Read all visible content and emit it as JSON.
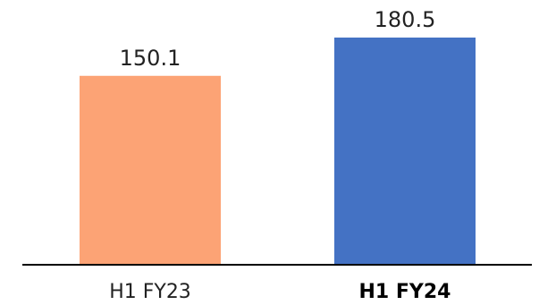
{
  "chart_data": {
    "type": "bar",
    "categories": [
      "H1 FY23",
      "H1 FY24"
    ],
    "values": [
      150.1,
      180.5
    ],
    "value_labels": [
      "150.1",
      "180.5"
    ],
    "bar_colors": [
      "#FCA375",
      "#4472C4"
    ],
    "bold_categories": [
      false,
      true
    ],
    "title": "",
    "xlabel": "",
    "ylabel": "",
    "ylim": [
      0,
      180.5
    ],
    "grid": false,
    "legend": "none",
    "axis_color": "#000000"
  }
}
